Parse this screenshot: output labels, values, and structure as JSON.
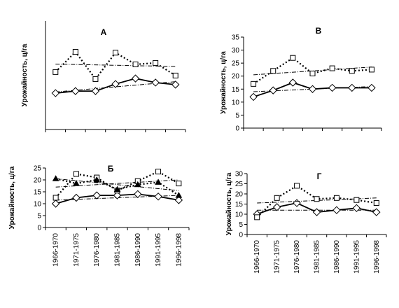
{
  "chart_data": [
    {
      "type": "line",
      "title": "А",
      "y_label": "Урожайность, ц/га",
      "categories": [
        null,
        null,
        null,
        null,
        null,
        null,
        null
      ],
      "ylim": [
        -2,
        35
      ],
      "series": [
        {
          "color": "#000000",
          "marker": "diamond",
          "line": "solid",
          "values": [
            10.4,
            11.1,
            11.1,
            13.5,
            15.4,
            14,
            13.3
          ],
          "trend": [
            10.8,
            14.3
          ]
        },
        {
          "color": "#000000",
          "marker": "square",
          "line": "dotted",
          "values": [
            17.6,
            24.5,
            15.2,
            24.2,
            20.2,
            20.7,
            16.4
          ],
          "trend": [
            20.3,
            19.5
          ]
        }
      ]
    },
    {
      "type": "line",
      "title": "В",
      "y_label": "Урожайность, ц/га",
      "categories": [
        null,
        null,
        null,
        null,
        null,
        null,
        null
      ],
      "ylim": [
        0,
        35
      ],
      "yticks": [
        0,
        5,
        10,
        15,
        20,
        25,
        30,
        35
      ],
      "series": [
        {
          "color": "#000000",
          "marker": "diamond",
          "line": "solid",
          "values": [
            12,
            14.5,
            17.5,
            15,
            15.5,
            15.5,
            15.5
          ],
          "trend": [
            14,
            16
          ]
        },
        {
          "color": "#000000",
          "marker": "square",
          "line": "dotted",
          "values": [
            17,
            22,
            27,
            21,
            23,
            22,
            22.5
          ],
          "trend": [
            20.5,
            23.5
          ]
        }
      ]
    },
    {
      "type": "line",
      "title": "Б",
      "y_label": "Урожайность, ц/га",
      "categories": [
        "1966-1970",
        "1971-1975",
        "1976-1980",
        "1981-1985",
        "1986-1990",
        "1991-1995",
        "1996-1998"
      ],
      "ylim": [
        0,
        25
      ],
      "yticks": [
        0,
        5,
        10,
        15,
        20,
        25
      ],
      "series": [
        {
          "color": "#000000",
          "marker": "diamond",
          "line": "solid",
          "values": [
            10,
            12.5,
            13.5,
            13.5,
            14,
            13,
            11.5
          ],
          "trend": [
            11.5,
            13.5
          ]
        },
        {
          "color": "#000000",
          "marker": "square",
          "line": "dotted",
          "values": [
            12.5,
            22.5,
            21,
            15.5,
            19.5,
            23.5,
            18.5
          ],
          "trend": [
            17,
            20
          ]
        },
        {
          "color": "#000000",
          "marker": "triangle",
          "line": "dotted",
          "values": [
            20.5,
            18.5,
            20,
            16,
            18,
            19,
            13.5
          ],
          "trend": [
            20.5,
            15.5
          ]
        }
      ]
    },
    {
      "type": "line",
      "title": "Г",
      "y_label": "Урожайность, ц/га",
      "categories": [
        "1966-1970",
        "1971-1975",
        "1976-1980",
        "1981-1985",
        "1986-1990",
        "1991-1995",
        "1996-1998"
      ],
      "ylim": [
        0,
        30
      ],
      "yticks": [
        0,
        5,
        10,
        15,
        20,
        25,
        30
      ],
      "series": [
        {
          "color": "#000000",
          "marker": "diamond",
          "line": "solid",
          "values": [
            10,
            13.5,
            15.5,
            11,
            12,
            13,
            11
          ],
          "trend": [
            12,
            12
          ]
        },
        {
          "color": "#000000",
          "marker": "square",
          "line": "dotted",
          "values": [
            8.5,
            18,
            24,
            17.5,
            18,
            17,
            15.5
          ],
          "trend": [
            15.5,
            18
          ]
        }
      ]
    }
  ]
}
